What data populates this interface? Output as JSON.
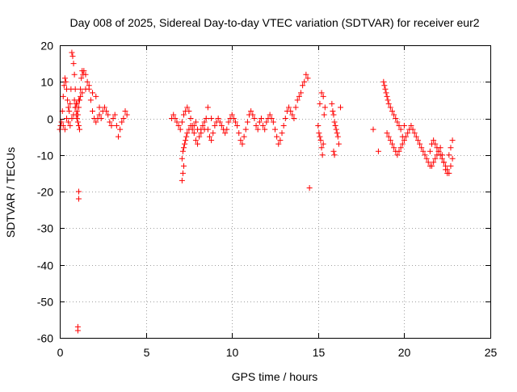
{
  "chart_data": {
    "type": "scatter",
    "title": "Day 008 of 2025, Sidereal Day-to-day VTEC variation (SDTVAR) for receiver eur2",
    "xlabel": "GPS time / hours",
    "ylabel": "SDTVAR / TECUs",
    "xlim": [
      0,
      25
    ],
    "ylim": [
      -60,
      20
    ],
    "xticks": [
      0,
      5,
      10,
      15,
      20,
      25
    ],
    "yticks": [
      -60,
      -50,
      -40,
      -30,
      -20,
      -10,
      0,
      10,
      20
    ],
    "grid": true,
    "marker": "plus",
    "color": "#ff0000",
    "series": [
      {
        "name": "SDTVAR",
        "x": [
          0.0,
          0.05,
          0.1,
          0.15,
          0.2,
          0.25,
          0.3,
          0.35,
          0.4,
          0.45,
          0.5,
          0.55,
          0.6,
          0.65,
          0.7,
          0.75,
          0.8,
          0.85,
          0.9,
          0.95,
          1.0,
          1.05,
          1.1,
          1.15,
          1.2,
          1.25,
          1.3,
          1.35,
          1.4,
          1.5,
          1.6,
          1.7,
          1.8,
          1.9,
          2.0,
          2.1,
          2.2,
          2.3,
          2.4,
          2.5,
          2.6,
          2.7,
          2.8,
          2.9,
          3.0,
          3.1,
          3.2,
          3.3,
          3.4,
          3.5,
          3.6,
          3.7,
          3.8,
          3.9,
          0.2,
          0.3,
          0.4,
          0.5,
          0.6,
          0.7,
          0.8,
          0.9,
          1.0,
          1.1,
          1.2,
          1.3,
          1.5,
          1.7,
          1.9,
          2.1,
          2.3,
          0.85,
          0.9,
          0.95,
          1.0,
          1.05,
          1.1,
          1.15,
          1.1,
          1.1,
          1.05,
          1.05,
          6.5,
          6.6,
          6.7,
          6.8,
          6.9,
          7.0,
          7.1,
          7.2,
          7.3,
          7.4,
          7.5,
          7.6,
          7.7,
          7.8,
          7.9,
          8.0,
          8.1,
          8.2,
          8.3,
          8.4,
          8.5,
          8.6,
          8.7,
          8.8,
          8.9,
          9.0,
          9.1,
          9.2,
          9.3,
          9.4,
          9.5,
          9.6,
          9.7,
          9.8,
          9.9,
          10.0,
          10.1,
          10.2,
          10.3,
          10.4,
          10.5,
          10.6,
          10.7,
          10.8,
          10.9,
          11.0,
          11.1,
          11.2,
          11.3,
          11.4,
          11.5,
          11.6,
          11.7,
          11.8,
          11.9,
          12.0,
          12.1,
          12.2,
          12.3,
          12.4,
          12.5,
          12.6,
          12.7,
          12.8,
          12.9,
          13.0,
          13.1,
          13.2,
          13.3,
          13.4,
          13.5,
          13.6,
          13.7,
          13.8,
          13.9,
          14.0,
          14.1,
          14.2,
          14.3,
          14.4,
          14.5,
          7.1,
          7.15,
          7.2,
          7.1,
          7.15,
          7.2,
          7.25,
          7.3,
          7.35,
          7.4,
          7.5,
          7.6,
          7.7,
          7.8,
          7.9,
          8.0,
          8.2,
          8.4,
          8.6,
          8.8,
          15.0,
          15.05,
          15.1,
          15.15,
          15.2,
          15.25,
          15.3,
          15.35,
          15.4,
          15.1,
          15.2,
          15.3,
          15.8,
          15.85,
          15.9,
          15.95,
          16.0,
          16.05,
          16.1,
          16.15,
          16.2,
          15.9,
          15.95,
          16.3,
          18.2,
          18.5,
          18.8,
          18.85,
          18.9,
          18.95,
          19.0,
          19.05,
          19.1,
          19.2,
          19.3,
          19.4,
          19.5,
          19.6,
          19.7,
          19.8,
          19.9,
          20.0,
          19.0,
          19.1,
          19.2,
          19.3,
          19.4,
          19.5,
          19.6,
          19.7,
          19.8,
          19.9,
          20.0,
          20.1,
          20.2,
          20.3,
          20.4,
          20.5,
          20.6,
          20.7,
          20.8,
          20.9,
          21.0,
          21.1,
          21.2,
          21.3,
          21.4,
          21.5,
          21.6,
          21.7,
          21.8,
          21.9,
          22.0,
          22.1,
          22.2,
          22.3,
          22.4,
          22.5,
          22.6,
          22.7,
          22.8,
          21.5,
          21.6,
          21.7,
          21.8,
          21.9,
          22.0,
          22.1,
          22.2,
          22.3,
          22.4,
          22.5,
          22.6,
          22.7,
          22.8
        ],
        "y": [
          -3,
          -2,
          -1,
          2,
          6,
          9,
          11,
          10,
          8,
          5,
          3,
          2,
          4,
          8,
          18,
          17,
          15,
          12,
          8,
          4,
          2,
          1,
          3,
          5,
          8,
          11,
          13,
          12,
          13,
          12,
          10,
          8,
          5,
          2,
          0,
          -1,
          0,
          1,
          0,
          2,
          3,
          2,
          1,
          -1,
          -2,
          0,
          1,
          -2,
          -5,
          -3,
          -1,
          0,
          2,
          1,
          -2,
          -3,
          0,
          -1,
          -2,
          0,
          1,
          3,
          4,
          5,
          6,
          7,
          8,
          9,
          7,
          6,
          3,
          5,
          3,
          1,
          0,
          -1,
          -2,
          -3,
          -20,
          -22,
          -57,
          -58,
          0,
          1,
          0,
          -1,
          -2,
          -3,
          -1,
          1,
          2,
          3,
          2,
          0,
          -2,
          -4,
          -6,
          -7,
          -5,
          -3,
          -2,
          -1,
          0,
          -3,
          -5,
          -6,
          -4,
          -2,
          -1,
          0,
          -1,
          -2,
          -3,
          -4,
          -3,
          -1,
          0,
          1,
          0,
          -1,
          -2,
          -4,
          -6,
          -7,
          -5,
          -3,
          -1,
          1,
          2,
          1,
          0,
          -2,
          -3,
          -1,
          0,
          -2,
          -3,
          -1,
          0,
          1,
          0,
          -1,
          -3,
          -5,
          -7,
          -6,
          -4,
          -2,
          0,
          2,
          3,
          2,
          1,
          0,
          3,
          5,
          6,
          7,
          9,
          10,
          12,
          11,
          -19,
          -17,
          -15,
          -13,
          -11,
          -9,
          -8,
          -7,
          -6,
          -5,
          -4,
          -3,
          -2,
          -3,
          -2,
          -1,
          -3,
          -4,
          -3,
          3,
          0,
          -2,
          -4,
          -5,
          -6,
          -8,
          -10,
          -7,
          1,
          3,
          4,
          7,
          6,
          4,
          2,
          1,
          -1,
          -2,
          -3,
          -4,
          -5,
          -7,
          -9,
          -10,
          3,
          -3,
          -9,
          10,
          9,
          8,
          7,
          6,
          5,
          4,
          3,
          2,
          1,
          0,
          -1,
          -2,
          -3,
          -5,
          -2,
          -4,
          -5,
          -6,
          -7,
          -8,
          -9,
          -10,
          -9,
          -8,
          -7,
          -6,
          -5,
          -4,
          -3,
          -2,
          -3,
          -4,
          -5,
          -6,
          -7,
          -8,
          -9,
          -10,
          -11,
          -12,
          -13,
          -13,
          -12,
          -11,
          -10,
          -9,
          -8,
          -10,
          -12,
          -14,
          -15,
          -15,
          -13,
          -11,
          -9,
          -7,
          -6,
          -7,
          -8,
          -9,
          -10,
          -11,
          -12,
          -13,
          -14,
          -10,
          -8,
          -6
        ]
      }
    ]
  }
}
